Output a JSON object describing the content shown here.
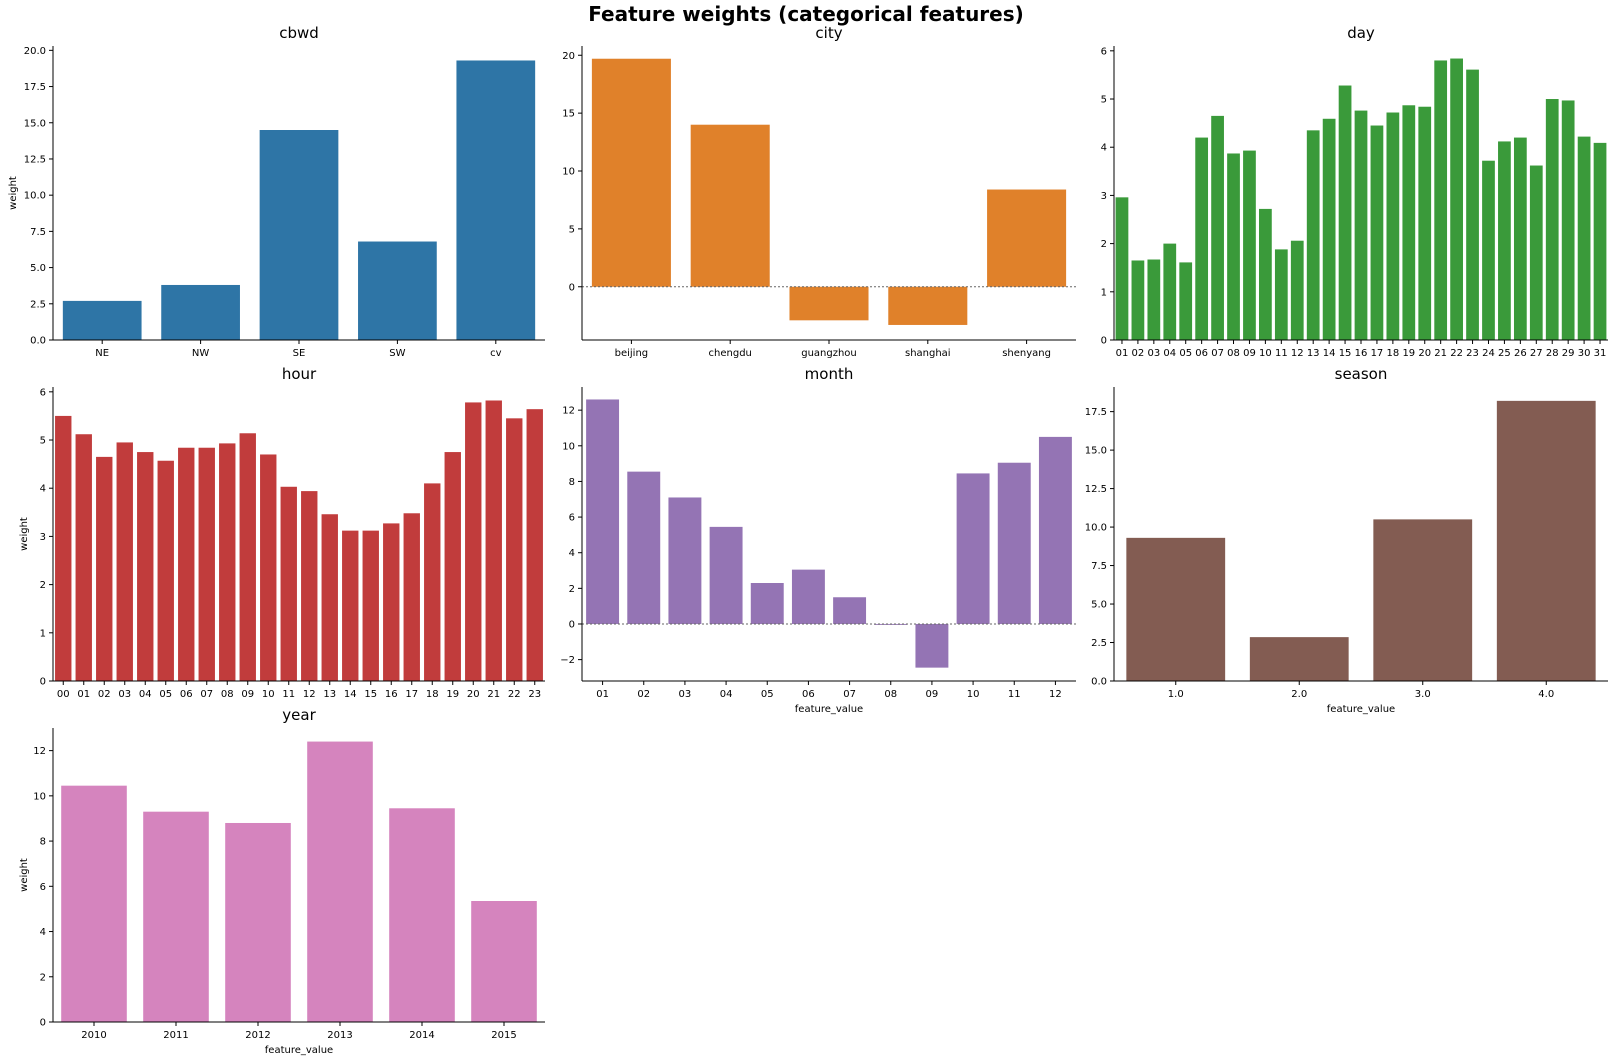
{
  "title": "Feature weights (categorical features)",
  "chart_data": [
    {
      "type": "bar",
      "title": "cbwd",
      "xlabel": "",
      "ylabel": "weight",
      "color": "#2e75a6",
      "categories": [
        "NE",
        "NW",
        "SE",
        "SW",
        "cv"
      ],
      "values": [
        2.7,
        3.8,
        14.5,
        6.8,
        19.3
      ],
      "ylim": [
        0,
        20.3
      ],
      "yticks": [
        "0.0",
        "2.5",
        "5.0",
        "7.5",
        "10.0",
        "12.5",
        "15.0",
        "17.5",
        "20.0"
      ]
    },
    {
      "type": "bar",
      "title": "city",
      "xlabel": "",
      "ylabel": "",
      "color": "#e0812a",
      "categories": [
        "beijing",
        "chengdu",
        "guangzhou",
        "shanghai",
        "shenyang"
      ],
      "values": [
        19.7,
        14.0,
        -2.9,
        -3.3,
        8.4
      ],
      "ylim": [
        -4.6,
        20.8
      ],
      "yticks": [
        "0",
        "5",
        "10",
        "15",
        "20"
      ]
    },
    {
      "type": "bar",
      "title": "day",
      "xlabel": "",
      "ylabel": "",
      "color": "#3a9a3a",
      "categories": [
        "01",
        "02",
        "03",
        "04",
        "05",
        "06",
        "07",
        "08",
        "09",
        "10",
        "11",
        "12",
        "13",
        "14",
        "15",
        "16",
        "17",
        "18",
        "19",
        "20",
        "21",
        "22",
        "23",
        "24",
        "25",
        "26",
        "27",
        "28",
        "29",
        "30",
        "31"
      ],
      "values": [
        2.96,
        1.65,
        1.67,
        2.0,
        1.61,
        4.2,
        4.65,
        3.87,
        3.93,
        2.72,
        1.88,
        2.06,
        4.35,
        4.59,
        5.28,
        4.76,
        4.45,
        4.72,
        4.87,
        4.84,
        5.8,
        5.84,
        5.61,
        3.72,
        4.12,
        4.2,
        3.62,
        5.0,
        4.97,
        4.22,
        4.09
      ],
      "ylim": [
        0,
        6.1
      ],
      "yticks": [
        "0",
        "1",
        "2",
        "3",
        "4",
        "5",
        "6"
      ]
    },
    {
      "type": "bar",
      "title": "hour",
      "xlabel": "",
      "ylabel": "weight",
      "color": "#c13c3c",
      "categories": [
        "00",
        "01",
        "02",
        "03",
        "04",
        "05",
        "06",
        "07",
        "08",
        "09",
        "10",
        "11",
        "12",
        "13",
        "14",
        "15",
        "16",
        "17",
        "18",
        "19",
        "20",
        "21",
        "22",
        "23"
      ],
      "values": [
        5.5,
        5.12,
        4.65,
        4.95,
        4.75,
        4.57,
        4.84,
        4.84,
        4.93,
        5.14,
        4.7,
        4.03,
        3.94,
        3.46,
        3.12,
        3.12,
        3.27,
        3.48,
        4.1,
        4.75,
        5.78,
        5.82,
        5.45,
        5.64
      ],
      "ylim": [
        0,
        6.1
      ],
      "yticks": [
        "0",
        "1",
        "2",
        "3",
        "4",
        "5",
        "6"
      ]
    },
    {
      "type": "bar",
      "title": "month",
      "xlabel": "feature_value",
      "ylabel": "",
      "color": "#9474b4",
      "categories": [
        "01",
        "02",
        "03",
        "04",
        "05",
        "06",
        "07",
        "08",
        "09",
        "10",
        "11",
        "12"
      ],
      "values": [
        12.6,
        8.55,
        7.1,
        5.45,
        2.3,
        3.05,
        1.5,
        -0.05,
        -2.45,
        8.45,
        9.05,
        10.5
      ],
      "ylim": [
        -3.2,
        13.3
      ],
      "yticks": [
        "−2",
        "0",
        "2",
        "4",
        "6",
        "8",
        "10",
        "12"
      ]
    },
    {
      "type": "bar",
      "title": "season",
      "xlabel": "feature_value",
      "ylabel": "",
      "color": "#835c52",
      "categories": [
        "1.0",
        "2.0",
        "3.0",
        "4.0"
      ],
      "values": [
        9.3,
        2.85,
        10.5,
        18.2
      ],
      "ylim": [
        0,
        19.1
      ],
      "yticks": [
        "0.0",
        "2.5",
        "5.0",
        "7.5",
        "10.0",
        "12.5",
        "15.0",
        "17.5"
      ]
    },
    {
      "type": "bar",
      "title": "year",
      "xlabel": "feature_value",
      "ylabel": "weight",
      "color": "#d584be",
      "categories": [
        "2010",
        "2011",
        "2012",
        "2013",
        "2014",
        "2015"
      ],
      "values": [
        10.45,
        9.3,
        8.8,
        12.4,
        9.45,
        5.35
      ],
      "ylim": [
        0,
        13.0
      ],
      "yticks": [
        "0",
        "2",
        "4",
        "6",
        "8",
        "10",
        "12"
      ]
    }
  ]
}
